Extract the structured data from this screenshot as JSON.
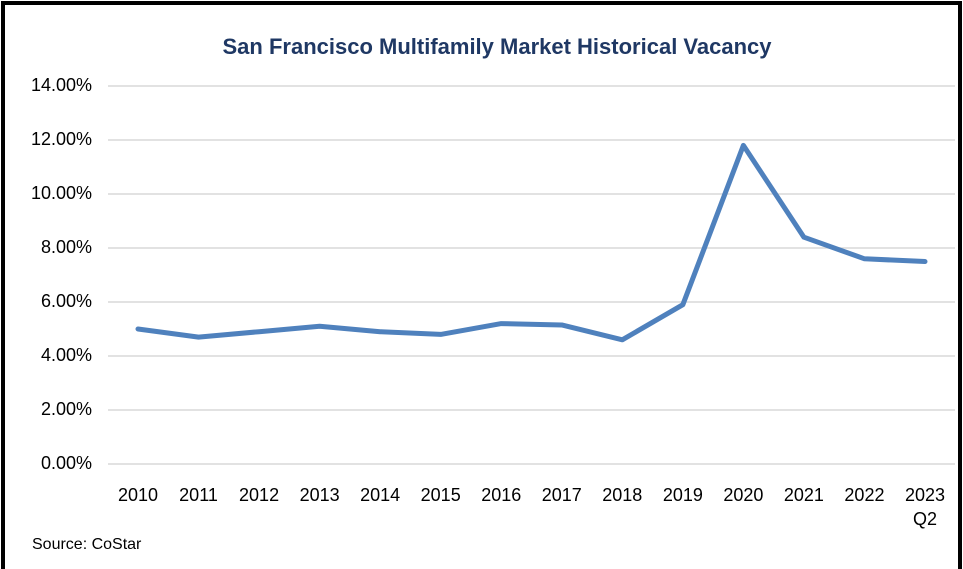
{
  "chart_data": {
    "type": "line",
    "title": "San Francisco Multifamily Market Historical Vacancy",
    "source": "Source: CoStar",
    "categories": [
      "2010",
      "2011",
      "2012",
      "2013",
      "2014",
      "2015",
      "2016",
      "2017",
      "2018",
      "2019",
      "2020",
      "2021",
      "2022",
      "2023\nQ2"
    ],
    "series": [
      {
        "name": "Vacancy",
        "color": "#4f81bd",
        "values": [
          5.0,
          4.7,
          4.9,
          5.1,
          4.9,
          4.8,
          5.2,
          5.15,
          4.6,
          5.9,
          11.8,
          8.4,
          7.6,
          7.5
        ]
      }
    ],
    "ylim": [
      0,
      14
    ],
    "yticks": [
      {
        "value": 0,
        "label": "0.00%"
      },
      {
        "value": 2,
        "label": "2.00%"
      },
      {
        "value": 4,
        "label": "4.00%"
      },
      {
        "value": 6,
        "label": "6.00%"
      },
      {
        "value": 8,
        "label": "8.00%"
      },
      {
        "value": 10,
        "label": "10.00%"
      },
      {
        "value": 12,
        "label": "12.00%"
      },
      {
        "value": 14,
        "label": "14.00%"
      }
    ],
    "grid": true
  }
}
